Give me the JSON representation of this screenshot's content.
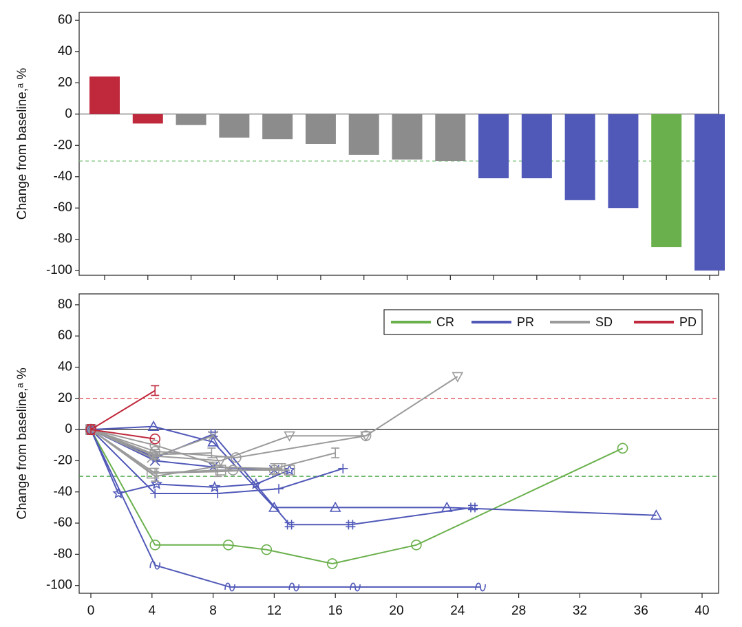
{
  "chart_data": [
    {
      "type": "bar",
      "panel": "waterfall",
      "ylabel": "Change from baseline,ᵃ %",
      "ylim": [
        -103,
        65
      ],
      "yticks": [
        60,
        40,
        20,
        0,
        -20,
        -40,
        -60,
        -80,
        -100
      ],
      "threshold": -30,
      "colors": {
        "CR": "#6ab04c",
        "PR": "#5058b8",
        "SD": "#8c8c8c",
        "PD": "#c0283c"
      },
      "bars": [
        {
          "value": 24,
          "response": "PD"
        },
        {
          "value": -6,
          "response": "PD"
        },
        {
          "value": -7,
          "response": "SD"
        },
        {
          "value": -15,
          "response": "SD"
        },
        {
          "value": -16,
          "response": "SD"
        },
        {
          "value": -19,
          "response": "SD"
        },
        {
          "value": -26,
          "response": "SD"
        },
        {
          "value": -29,
          "response": "SD"
        },
        {
          "value": -30,
          "response": "SD"
        },
        {
          "value": -41,
          "response": "PR"
        },
        {
          "value": -41,
          "response": "PR"
        },
        {
          "value": -55,
          "response": "PR"
        },
        {
          "value": -60,
          "response": "PR"
        },
        {
          "value": -85,
          "response": "CR"
        },
        {
          "value": -100,
          "response": "PR"
        }
      ]
    },
    {
      "type": "line",
      "panel": "spider",
      "ylabel": "Change from baseline,ᵃ %",
      "xlim": [
        -1,
        41
      ],
      "ylim": [
        -105,
        87
      ],
      "xticks": [
        0,
        4,
        8,
        12,
        16,
        20,
        24,
        28,
        32,
        36,
        40
      ],
      "yticks": [
        80,
        60,
        40,
        20,
        0,
        -20,
        -40,
        -60,
        -80,
        -100
      ],
      "reference_lines": [
        {
          "y": 20,
          "color": "#e0505a",
          "style": "dashed"
        },
        {
          "y": 0,
          "color": "#333333",
          "style": "solid"
        },
        {
          "y": -30,
          "color": "#3aa03a",
          "style": "dashed"
        }
      ],
      "legend": {
        "position": "top-right",
        "entries": [
          "CR",
          "PR",
          "SD",
          "PD"
        ]
      },
      "colors": {
        "CR": "#6ab04c",
        "PR": "#5058b8",
        "SD": "#9a9a9a",
        "PD": "#c0283c"
      },
      "series": [
        {
          "response": "CR",
          "marker": "circle",
          "points": [
            [
              0,
              0
            ],
            [
              4.2,
              -74
            ],
            [
              9,
              -74
            ],
            [
              11.5,
              -77
            ],
            [
              15.8,
              -86
            ],
            [
              21.3,
              -74
            ],
            [
              34.8,
              -12
            ]
          ]
        },
        {
          "response": "PR",
          "marker": "tilde",
          "points": [
            [
              0,
              0
            ],
            [
              4.2,
              -87
            ],
            [
              9.1,
              -101
            ],
            [
              13.3,
              -101
            ],
            [
              17.3,
              -101
            ],
            [
              25.5,
              -101
            ]
          ]
        },
        {
          "response": "PR",
          "marker": "triangle",
          "points": [
            [
              0,
              0
            ],
            [
              4.1,
              2
            ],
            [
              8,
              -8
            ],
            [
              12,
              -50
            ],
            [
              16,
              -50
            ],
            [
              23.3,
              -50
            ],
            [
              37,
              -55
            ]
          ]
        },
        {
          "response": "PR",
          "marker": "hash",
          "points": [
            [
              0,
              0
            ],
            [
              4.2,
              -18
            ],
            [
              8,
              -3
            ],
            [
              13,
              -61
            ],
            [
              17,
              -61
            ],
            [
              25,
              -50
            ]
          ]
        },
        {
          "response": "PR",
          "marker": "plus",
          "points": [
            [
              0,
              0
            ],
            [
              4.2,
              -41
            ],
            [
              8.3,
              -41
            ],
            [
              12.3,
              -38
            ],
            [
              16.5,
              -25
            ]
          ]
        },
        {
          "response": "PR",
          "marker": "star",
          "points": [
            [
              0,
              0
            ],
            [
              1.8,
              -41
            ],
            [
              4.3,
              -35
            ],
            [
              8.1,
              -37
            ],
            [
              10.8,
              -35
            ],
            [
              13,
              -26
            ]
          ]
        },
        {
          "response": "PR",
          "marker": "x",
          "points": [
            [
              0,
              0
            ],
            [
              4.2,
              -20
            ],
            [
              8,
              -24
            ],
            [
              12,
              -26
            ]
          ]
        },
        {
          "response": "SD",
          "marker": "inverted-triangle",
          "points": [
            [
              0,
              0
            ],
            [
              4.2,
              -17
            ],
            [
              8.5,
              -20
            ],
            [
              13,
              -4
            ],
            [
              18,
              -4
            ],
            [
              24,
              34
            ]
          ]
        },
        {
          "response": "SD",
          "marker": "circle",
          "points": [
            [
              0,
              0
            ],
            [
              4.2,
              -10
            ],
            [
              9.3,
              -26
            ],
            [
              12,
              -26
            ]
          ]
        },
        {
          "response": "SD",
          "marker": "square",
          "points": [
            [
              0,
              0
            ],
            [
              4,
              -28
            ],
            [
              8.5,
              -26
            ],
            [
              13,
              -26
            ]
          ]
        },
        {
          "response": "SD",
          "marker": "circle",
          "points": [
            [
              0,
              0
            ],
            [
              4.2,
              -14
            ],
            [
              9.5,
              -18
            ],
            [
              18,
              -4
            ]
          ]
        },
        {
          "response": "SD",
          "marker": "x",
          "points": [
            [
              0,
              0
            ],
            [
              4,
              -18
            ],
            [
              8,
              -4
            ]
          ]
        },
        {
          "response": "SD",
          "marker": "cap",
          "points": [
            [
              0,
              0
            ],
            [
              4.2,
              -16
            ],
            [
              7.9,
              -15
            ]
          ]
        },
        {
          "response": "SD",
          "marker": "cap",
          "points": [
            [
              0,
              0
            ],
            [
              4.2,
              -30
            ],
            [
              8,
              -24
            ],
            [
              12,
              -25
            ],
            [
              16,
              -15
            ]
          ]
        },
        {
          "response": "SD",
          "marker": "cap",
          "points": [
            [
              0,
              0
            ],
            [
              4.2,
              -28
            ],
            [
              8.3,
              -27
            ],
            [
              12.5,
              -25
            ]
          ]
        },
        {
          "response": "PD",
          "marker": "cap",
          "points": [
            [
              0,
              0
            ],
            [
              4.2,
              25
            ]
          ]
        },
        {
          "response": "PD",
          "marker": "circle",
          "points": [
            [
              0,
              0
            ],
            [
              4.2,
              -6
            ]
          ]
        }
      ]
    }
  ]
}
